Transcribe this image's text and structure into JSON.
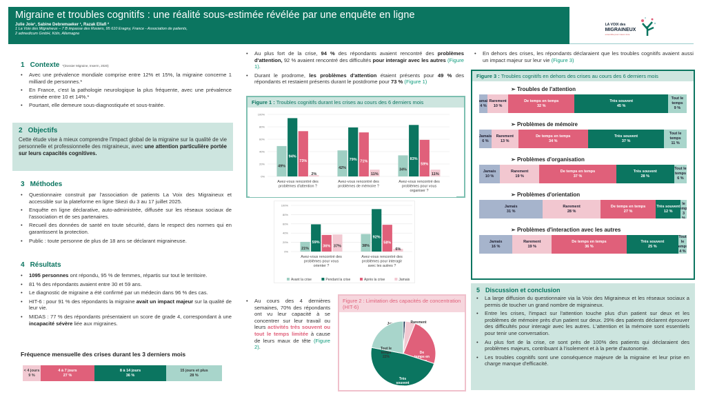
{
  "header": {
    "title": "Migraine et troubles cognitifs : une réalité sous-estimée révélée par une enquête en ligne",
    "authors": "Julie Joie¹, Sabine Debremaeker ¹, Razak Ellafi ²",
    "aff1": "1 La Voix des Migraineux – 7 B impasse des Rosiers, 95 610 Eragny, France - Association de patients,",
    "aff2": "2 admedicum GmbH, Köln, Allemagne"
  },
  "logo": {
    "line1": "LA VOIX des",
    "line2": "MIGRAINEUX",
    "tagline": "ensemble pour mieux vivre"
  },
  "colors": {
    "primary": "#0b7560",
    "light_teal": "#9fcfc3",
    "pink": "#e0607a",
    "light_pink": "#f2c9d2",
    "blue_gray": "#a6b4cc",
    "box_bg": "#cde5df"
  },
  "contexte": {
    "num": "1",
    "title": "Contexte",
    "ref": "*(Dossier Migraine, Inserm, 2020)",
    "bullets": [
      [
        {
          "t": "Avec une prévalence mondiale comprise entre 12% et  15%, la migraine concerne 1 milliard de personnes.*"
        }
      ],
      [
        {
          "t": "En France, c'est la pathologie neurologique la plus fréquente, avec une prévalence estimée entre 10 et 14%.*"
        }
      ],
      [
        {
          "t": "Pourtant, elle demeure sous-diagnostiquée et sous-traitée."
        }
      ]
    ]
  },
  "objectifs": {
    "num": "2",
    "title": "Objectifs",
    "text": [
      {
        "t": "Cette étude vise à mieux comprendre l'impact global de la migraine sur la qualité de vie personnelle et professionnelle des migraineux, avec "
      },
      {
        "t": "une attention particulière portée  sur leurs capacités cognitives.",
        "s": "b"
      }
    ]
  },
  "methodes": {
    "num": "3",
    "title": "Méthodes",
    "bullets": [
      [
        {
          "t": "Questionnaire construit par l'association de patients La Voix des Migraineux et accessible sur la plateforme en ligne Skezi du 3 au 17 juillet 2025."
        }
      ],
      [
        {
          "t": "Enquête en ligne déclarative, auto-administrée, diffusée sur les réseaux sociaux de l'association et de ses partenaires."
        }
      ],
      [
        {
          "t": "Recueil des données de santé en toute sécurité, dans le respect des normes qui en garantissent la protection."
        }
      ],
      [
        {
          "t": "Public : toute personne de plus de 18 ans se déclarant migraineuse."
        }
      ]
    ]
  },
  "resultats": {
    "num": "4",
    "title": "Résultats",
    "bullets": [
      [
        {
          "t": "1095 personnes",
          "s": "b"
        },
        {
          "t": " ont répondu, 95 % de femmes, répartis sur tout le territoire."
        }
      ],
      [
        {
          "t": "81 % des répondants avaient entre 30 et 59 ans."
        }
      ],
      [
        {
          "t": "Le diagnostic de migraine a été  confirmé par un médecin dans 96 % des cas."
        }
      ],
      [
        {
          "t": "HIT-6 : pour 91 % des répondants la migraine "
        },
        {
          "t": "avait un impact majeur",
          "s": "b"
        },
        {
          "t": " sur la qualité de leur vie."
        }
      ],
      [
        {
          "t": "MIDAS : 77 % des répondants présentaient un score de grade 4, correspondant à une "
        },
        {
          "t": "incapacité sévère",
          "s": "b"
        },
        {
          "t": " liée aux migraines."
        }
      ]
    ]
  },
  "frequence": {
    "title": "Fréquence mensuelle des crises durant les 3 derniers mois",
    "segments": [
      {
        "label": "< 4 jours",
        "pct": "9 %",
        "value": 9,
        "color": "#f2c9d2",
        "fg": "#444"
      },
      {
        "label": "4 à 7 jours",
        "pct": "27 %",
        "value": 27,
        "color": "#e0607a",
        "fg": "#fff"
      },
      {
        "label": "8 à 14 jours",
        "pct": "36 %",
        "value": 36,
        "color": "#0b7560",
        "fg": "#fff"
      },
      {
        "label": "15 jours et plus",
        "pct": "28 %",
        "value": 28,
        "color": "#a8d5cb",
        "fg": "#333"
      }
    ]
  },
  "middle": {
    "bullets_top": [
      [
        {
          "t": "Au plus fort de la  crise, "
        },
        {
          "t": "94 %",
          "s": "b"
        },
        {
          "t": " des répondants avaient rencontré des "
        },
        {
          "t": "problèmes d'attention,",
          "s": "b"
        },
        {
          "t": " 92 % avaient rencontré des difficultés "
        },
        {
          "t": "pour interagir avec les autres",
          "s": "b"
        },
        {
          "t": " "
        },
        {
          "t": "(Figure 1)",
          "s": "l"
        },
        {
          "t": "."
        }
      ],
      [
        {
          "t": "Durant le prodrome, "
        },
        {
          "t": "les problèmes d'attention",
          "s": "b"
        },
        {
          "t": " étaient présents pour "
        },
        {
          "t": "49 %",
          "s": "b"
        },
        {
          "t": " des répondants et restaient présents durant le postdrome pour "
        },
        {
          "t": "73 %",
          "s": "b"
        },
        {
          "t": " "
        },
        {
          "t": "(Figure 1)",
          "s": "l"
        }
      ]
    ],
    "bullet_bottom": [
      [
        {
          "t": "Au cours des 4 dernières semaines, 70% des répondants ont vu leur capacité à se concentrer sur leur travail ou leurs "
        },
        {
          "t": "activités très  souvent ou tout le temps limitée",
          "s": "r"
        },
        {
          "t": " à cause de leurs maux de tête "
        },
        {
          "t": "(Figure 2)",
          "s": "l"
        },
        {
          "t": "."
        }
      ]
    ]
  },
  "figure1": {
    "title_bold": "Figure 1 :",
    "title": " Troubles cognitifs  durant les crises au cours des 6 derniers mois"
  },
  "figure2": {
    "title": "Figure 2 : Limitation des capacités de concentration (HIT-6)"
  },
  "right": {
    "bullet_top": [
      [
        {
          "t": "En dehors des crises, les répondants déclaraient que les troubles cognitifs avaient aussi un impact majeur sur leur vie "
        },
        {
          "t": "(Figure 3)",
          "s": "l"
        }
      ]
    ]
  },
  "figure3": {
    "title_bold": "Figure 3 :",
    "title": " Troubles cognitifs en dehors des crises au cours des 6 derniers mois"
  },
  "discussion": {
    "num": "5",
    "title": "Discussion et conclusion",
    "bullets": [
      [
        {
          "t": "La large diffusion du questionnaire via la Voix des Migraineux et les réseaux sociaux a permis de toucher un grand nombre de migraineux."
        }
      ],
      [
        {
          "t": "Entre les crises, l'impact sur l'attention touche plus d'un patient sur deux et les problèmes de mémoire près d'un patient sur deux. 29% des patients déclarent éprouver des difficultés pour interagir avec les autres. L'attention et la mémoire sont essentiels pour tenir une conversation."
        }
      ],
      [
        {
          "t": " Au plus fort de la crise, ce sont près de 100% des patients qui déclaraient des problèmes majeurs, contribuant à l'isolement et à la perte d'autonomie."
        }
      ],
      [
        {
          "t": "Les  troubles cognitifs sont une conséquence majeure de la migraine et leur prise en charge manque d'efficacité."
        }
      ]
    ]
  },
  "chart_data": [
    {
      "type": "bar",
      "id": "figure1",
      "ylim": [
        0,
        100
      ],
      "yticks": [
        "0%",
        "20%",
        "40%",
        "60%",
        "80%",
        "100%"
      ],
      "grid": true,
      "legend": "bottom",
      "series_names": [
        "Avant la crise",
        "Pendant la crise",
        "Après la crise",
        "Jamais"
      ],
      "series_colors": [
        "#9fcfc3",
        "#0b7560",
        "#e0607a",
        "#f2c9d2"
      ],
      "categories": [
        "Avez-vous rencontré des problèmes d'attention ?",
        "Avez-vous rencontré des problèmes de mémoire ?",
        "Avez-vous rencontré des problèmes pour vous organiser ?",
        "Avez-vous rencontré des problèmes pour vous orienter ?",
        "Avez-vous rencontré des problèmes pour interagir avec les autres ?"
      ],
      "values": [
        [
          49,
          94,
          73,
          2
        ],
        [
          42,
          79,
          71,
          11
        ],
        [
          34,
          83,
          59,
          11
        ],
        [
          21,
          59,
          36,
          37
        ],
        [
          38,
          92,
          58,
          6
        ]
      ]
    },
    {
      "type": "pie",
      "id": "figure2",
      "slices": [
        {
          "label": "Jamais",
          "value": 1,
          "color": "#0d2a4a"
        },
        {
          "label": "Rarement",
          "value": 5,
          "color": "#f2c9d2"
        },
        {
          "label": "De temps en temps",
          "value": 24,
          "color": "#e0607a"
        },
        {
          "label": "Très souvent",
          "value": 48,
          "color": "#0b7560"
        },
        {
          "label": "Tout le temps",
          "value": 22,
          "color": "#a8d5cb"
        }
      ]
    },
    {
      "type": "bar",
      "stacked": true,
      "id": "figure3",
      "categories_order": [
        "Jamais",
        "Rarement",
        "De temps en temps",
        "Très souvent",
        "Tout le temps"
      ],
      "colors": [
        "#a6b4cc",
        "#f2c7d0",
        "#e0607a",
        "#0b7560",
        "#a8d5cb"
      ],
      "rows": [
        {
          "title": "Troubles de l'attention",
          "values": [
            4,
            10,
            32,
            45,
            9
          ]
        },
        {
          "title": "Problèmes de mémoire",
          "values": [
            6,
            13,
            34,
            37,
            11
          ]
        },
        {
          "title": "Problèmes d'organisation",
          "values": [
            10,
            19,
            37,
            28,
            6
          ]
        },
        {
          "title": "Problèmes d'orientation",
          "values": [
            31,
            28,
            27,
            12,
            3
          ]
        },
        {
          "title": "Problèmes d'interaction avec les autres",
          "values": [
            16,
            19,
            36,
            25,
            4
          ]
        }
      ]
    }
  ]
}
